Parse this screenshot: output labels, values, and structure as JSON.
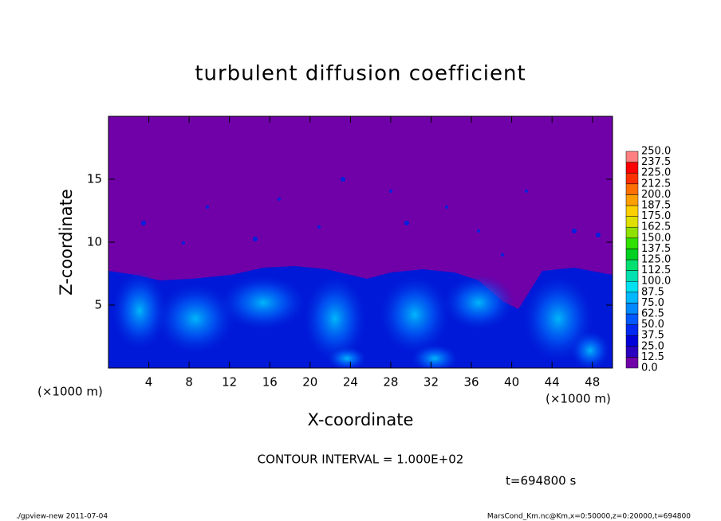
{
  "chart_data": {
    "type": "contour",
    "title": "turbulent diffusion coefficient",
    "x_label": "X-coordinate",
    "y_label": "Z-coordinate",
    "x_unit": "(×1000 m)",
    "y_unit": "(×1000 m)",
    "xlim": [
      0,
      50
    ],
    "ylim": [
      0,
      20
    ],
    "xticks": [
      4,
      8,
      12,
      16,
      20,
      24,
      28,
      32,
      36,
      40,
      44,
      48
    ],
    "yticks": [
      5,
      10,
      15
    ],
    "levels": [
      {
        "value": 0,
        "label": "0.0"
      },
      {
        "value": 12.5,
        "label": "12.5"
      },
      {
        "value": 25,
        "label": "25.0"
      },
      {
        "value": 37.5,
        "label": "37.5"
      },
      {
        "value": 50,
        "label": "50.0"
      },
      {
        "value": 62.5,
        "label": "62.5"
      },
      {
        "value": 75,
        "label": "75.0"
      },
      {
        "value": 87.5,
        "label": "87.5"
      },
      {
        "value": 100,
        "label": "100.0"
      },
      {
        "value": 112.5,
        "label": "112.5"
      },
      {
        "value": 125,
        "label": "125.0"
      },
      {
        "value": 137.5,
        "label": "137.5"
      },
      {
        "value": 150,
        "label": "150.0"
      },
      {
        "value": 162.5,
        "label": "162.5"
      },
      {
        "value": 175,
        "label": "175.0"
      },
      {
        "value": 187.5,
        "label": "187.5"
      },
      {
        "value": 200,
        "label": "200.0"
      },
      {
        "value": 212.5,
        "label": "212.5"
      },
      {
        "value": 225,
        "label": "225.0"
      },
      {
        "value": 237.5,
        "label": "237.5"
      },
      {
        "value": 250,
        "label": "250.0"
      }
    ],
    "colors": [
      "#7000a8",
      "#2a00c0",
      "#0000d8",
      "#0028f0",
      "#0058ff",
      "#0088ff",
      "#00b8ff",
      "#00e0f0",
      "#00e0b0",
      "#00e070",
      "#00d020",
      "#30e000",
      "#90e000",
      "#e0e000",
      "#ffd000",
      "#ffa000",
      "#ff7000",
      "#ff3000",
      "#ff0000",
      "#ff8080"
    ],
    "contour_interval": "CONTOUR INTERVAL = 1.000E+02",
    "time_label": "t=694800 s",
    "footer_left": "./gpview-new  2011-07-04",
    "footer_right": "MarsCond_Km.nc@Km,x=0:50000,z=0:20000,t=694800"
  }
}
